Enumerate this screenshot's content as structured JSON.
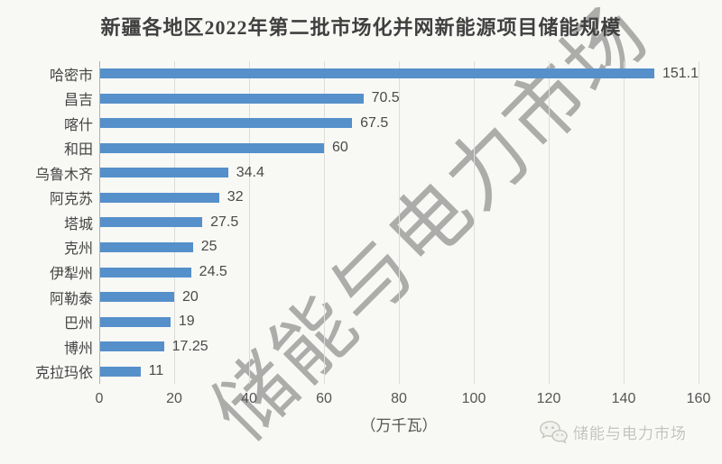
{
  "title": "新疆各地区2022年第二批市场化并网新能源项目储能规模",
  "watermark_text": "储能与电力市场",
  "footer": {
    "brand_label": "储能与电力市场",
    "icon": "wechat-icon"
  },
  "colors": {
    "bar": "#5590cb",
    "gridline": "#dcdcdc",
    "axis_line": "#b0b0ae",
    "title_text": "#404040",
    "tick_text": "#555555",
    "watermark": "rgba(132,132,132,0.66)",
    "background": "#f8f8f5",
    "brand_text": "#c3c3bd"
  },
  "chart_data": {
    "type": "bar",
    "orientation": "horizontal",
    "title": "新疆各地区2022年第二批市场化并网新能源项目储能规模",
    "categories": [
      "哈密市",
      "昌吉",
      "喀什",
      "和田",
      "乌鲁木齐",
      "阿克苏",
      "塔城",
      "克州",
      "伊犁州",
      "阿勒泰",
      "巴州",
      "博州",
      "克拉玛依"
    ],
    "values": [
      151.1,
      70.5,
      67.5,
      60,
      34.4,
      32,
      27.5,
      25,
      24.5,
      20,
      19,
      17.25,
      11
    ],
    "value_labels": [
      "151.1",
      "70.5",
      "67.5",
      "60",
      "34.4",
      "32",
      "27.5",
      "25",
      "24.5",
      "20",
      "19",
      "17.25",
      "11"
    ],
    "xlabel": "（万千瓦）",
    "ylabel": "",
    "xlim": [
      0,
      160
    ],
    "xticks": [
      0,
      20,
      40,
      60,
      80,
      100,
      120,
      140,
      160
    ],
    "grid": true,
    "legend": "none"
  }
}
